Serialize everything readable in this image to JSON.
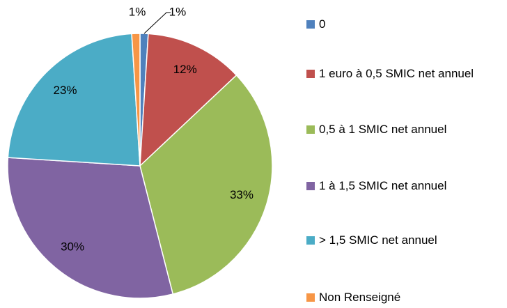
{
  "chart_data": {
    "type": "pie",
    "categories": [
      "0",
      "1 euro à 0,5 SMIC net annuel",
      "0,5 à 1 SMIC net annuel",
      "1 à 1,5 SMIC net annuel",
      "> 1,5 SMIC net annuel",
      "Non Renseigné"
    ],
    "values": [
      1,
      12,
      33,
      30,
      23,
      1
    ],
    "value_labels": [
      "1%",
      "12%",
      "33%",
      "30%",
      "23%",
      "1%"
    ],
    "colors": [
      "#4f81bd",
      "#c0504d",
      "#9bbb59",
      "#8064a2",
      "#4bacc6",
      "#f79646"
    ],
    "legend": "right"
  }
}
